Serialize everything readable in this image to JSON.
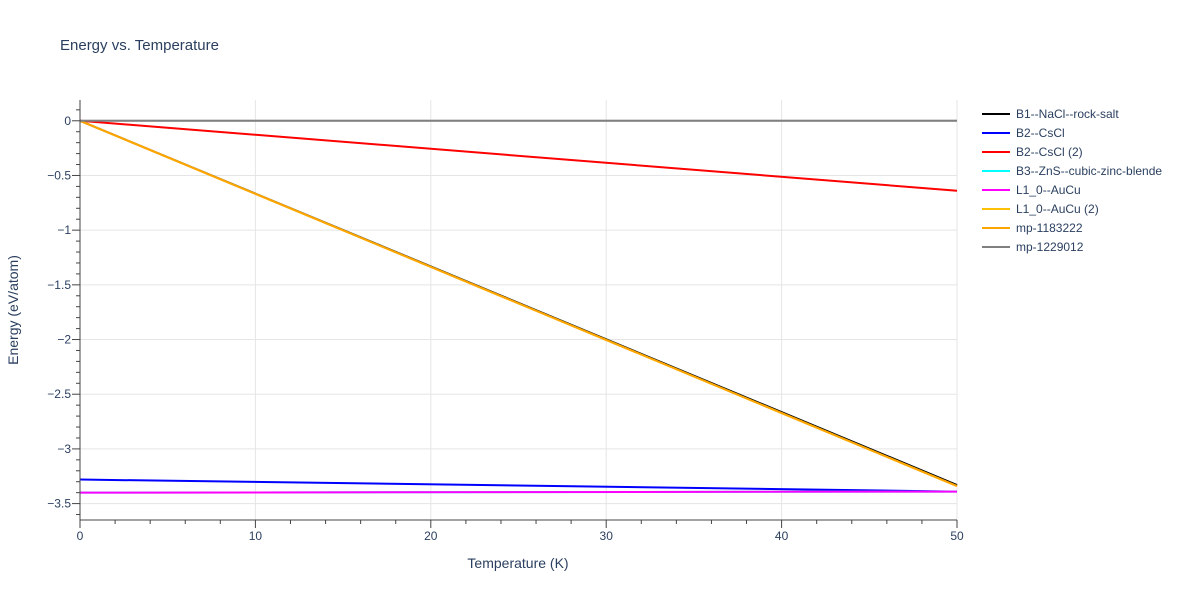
{
  "chart_data": {
    "type": "line",
    "title": "Energy vs. Temperature",
    "xlabel": "Temperature (K)",
    "ylabel": "Energy (eV/atom)",
    "xlim": [
      0,
      50
    ],
    "ylim": [
      -3.65,
      0.19
    ],
    "xticks": [
      0,
      10,
      20,
      30,
      40,
      50
    ],
    "xtick_labels": [
      "0",
      "10",
      "20",
      "30",
      "40",
      "50"
    ],
    "yticks": [
      0,
      -0.5,
      -1,
      -1.5,
      -2,
      -2.5,
      -3,
      -3.5
    ],
    "ytick_labels": [
      "0",
      "−0.5",
      "−1",
      "−1.5",
      "−2",
      "−2.5",
      "−3",
      "−3.5"
    ],
    "grid": true,
    "legend_position": "right",
    "series": [
      {
        "name": "B1--NaCl--rock-salt",
        "color": "#000000",
        "x": [
          0,
          50
        ],
        "y": [
          0,
          -3.33
        ]
      },
      {
        "name": "B2--CsCl",
        "color": "#0000ff",
        "x": [
          0,
          50
        ],
        "y": [
          -3.28,
          -3.39
        ]
      },
      {
        "name": "B2--CsCl (2)",
        "color": "#ff0000",
        "x": [
          0,
          50
        ],
        "y": [
          0,
          -0.64
        ]
      },
      {
        "name": "B3--ZnS--cubic-zinc-blende",
        "color": "#00ffff",
        "x": [
          0,
          50
        ],
        "y": [
          -3.4,
          -3.39
        ]
      },
      {
        "name": "L1_0--AuCu",
        "color": "#ff00ff",
        "x": [
          0,
          50
        ],
        "y": [
          -3.4,
          -3.39
        ]
      },
      {
        "name": "L1_0--AuCu (2)",
        "color": "#ffc107",
        "x": [
          0,
          50
        ],
        "y": [
          0,
          -3.34
        ]
      },
      {
        "name": "mp-1183222",
        "color": "#ffa500",
        "x": [
          0,
          50
        ],
        "y": [
          0,
          -3.34
        ]
      },
      {
        "name": "mp-1229012",
        "color": "#808080",
        "x": [
          0,
          50
        ],
        "y": [
          0,
          0
        ]
      }
    ]
  }
}
